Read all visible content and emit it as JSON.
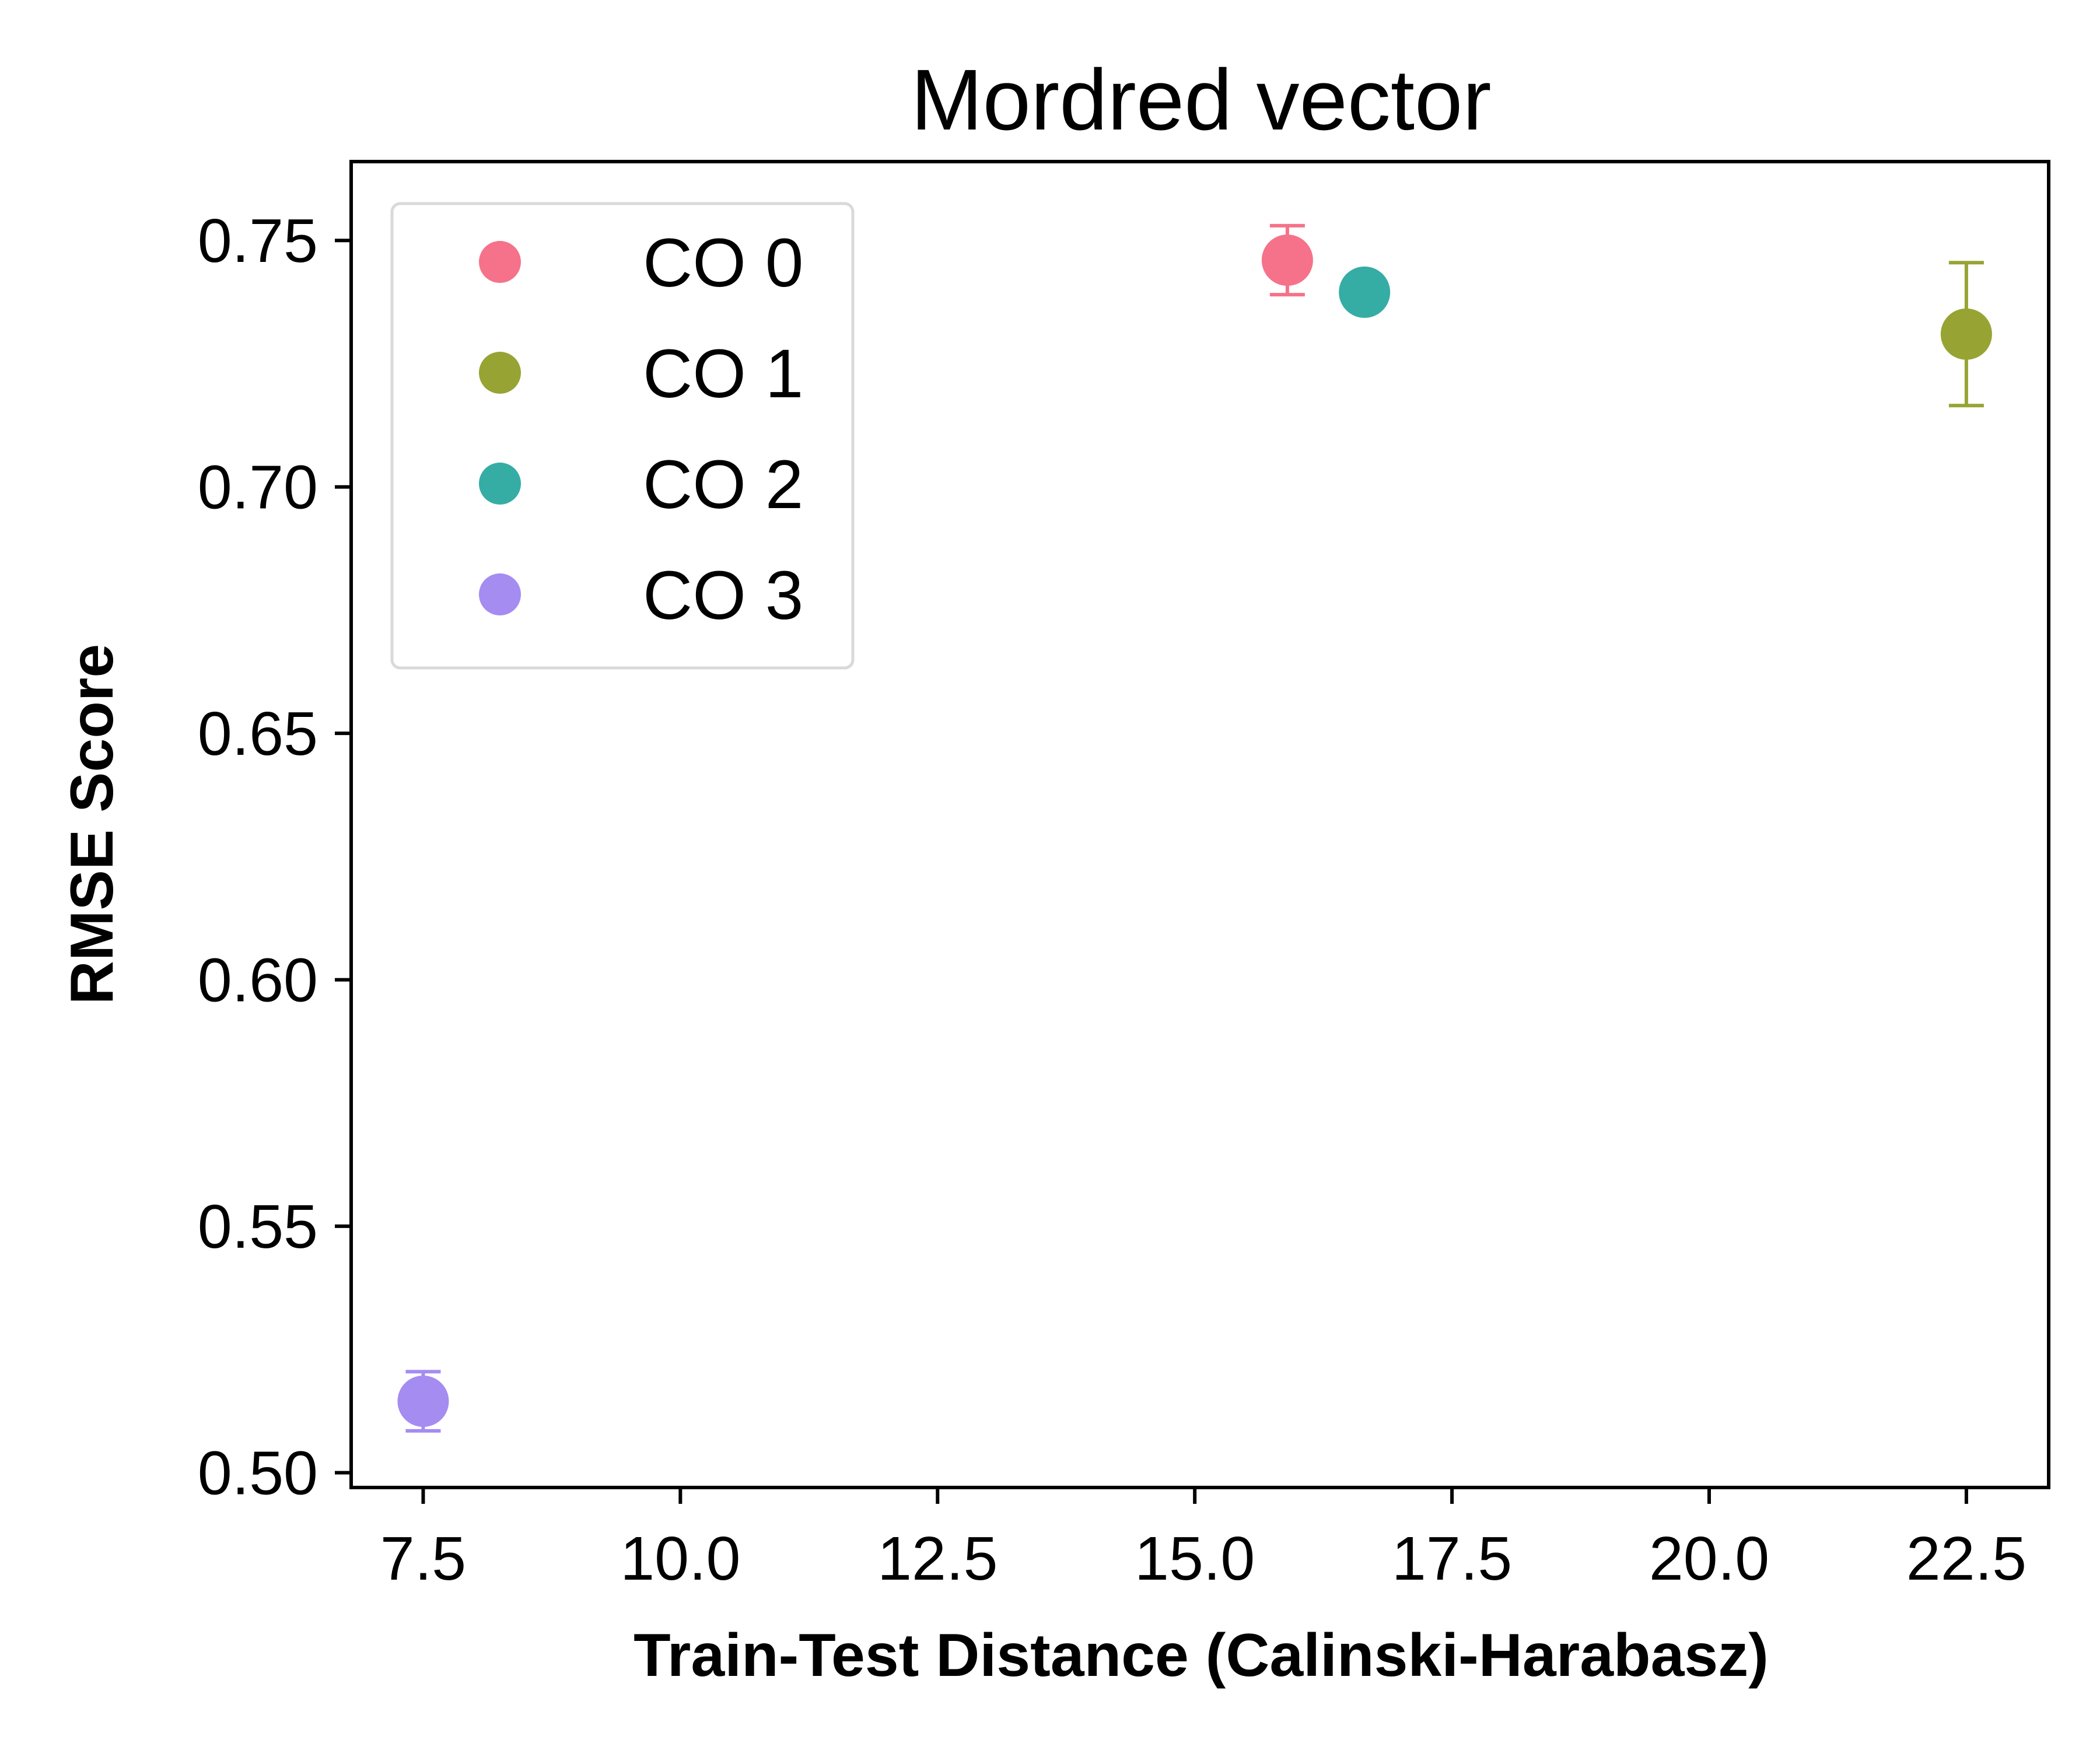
{
  "chart_data": {
    "type": "scatter",
    "title": "Mordred vector",
    "xlabel": "Train-Test Distance (Calinski-Harabasz)",
    "ylabel": "RMSE Score",
    "xlim": [
      6.8,
      23.3
    ],
    "ylim": [
      0.497,
      0.766
    ],
    "xticks": [
      7.5,
      10.0,
      12.5,
      15.0,
      17.5,
      20.0,
      22.5
    ],
    "xtick_labels": [
      "7.5",
      "10.0",
      "12.5",
      "15.0",
      "17.5",
      "20.0",
      "22.5"
    ],
    "yticks": [
      0.5,
      0.55,
      0.6,
      0.65,
      0.7,
      0.75
    ],
    "ytick_labels": [
      "0.50",
      "0.55",
      "0.60",
      "0.65",
      "0.70",
      "0.75"
    ],
    "grid": false,
    "legend_position": "top-left",
    "series": [
      {
        "name": "CO 0",
        "color": "#f5728a",
        "x": 15.9,
        "y": 0.746,
        "err": 0.007
      },
      {
        "name": "CO 1",
        "color": "#97a433",
        "x": 22.5,
        "y": 0.731,
        "err": 0.0145
      },
      {
        "name": "CO 2",
        "color": "#35ada5",
        "x": 16.65,
        "y": 0.7395,
        "err": 0.001
      },
      {
        "name": "CO 3",
        "color": "#a48cf1",
        "x": 7.5,
        "y": 0.5145,
        "err": 0.006
      }
    ]
  }
}
